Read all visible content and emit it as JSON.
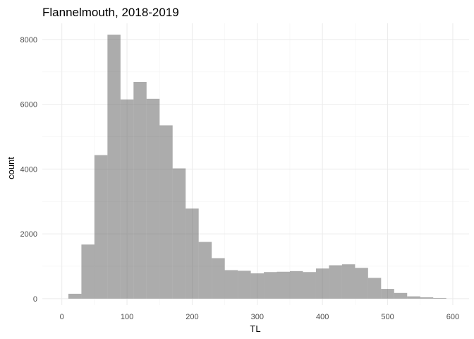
{
  "chart_data": {
    "type": "bar",
    "title": "Flannelmouth, 2018-2019",
    "xlabel": "TL",
    "ylabel": "count",
    "xlim": [
      -30,
      625
    ],
    "ylim": [
      -200,
      8500
    ],
    "x_ticks": [
      0,
      100,
      200,
      300,
      400,
      500,
      600
    ],
    "y_ticks": [
      0,
      2000,
      4000,
      6000,
      8000
    ],
    "bin_width": 20,
    "bins": [
      {
        "x0": 10,
        "x1": 30,
        "count": 150
      },
      {
        "x0": 30,
        "x1": 50,
        "count": 1670
      },
      {
        "x0": 50,
        "x1": 70,
        "count": 4430
      },
      {
        "x0": 70,
        "x1": 90,
        "count": 8150
      },
      {
        "x0": 90,
        "x1": 110,
        "count": 6150
      },
      {
        "x0": 110,
        "x1": 130,
        "count": 6690
      },
      {
        "x0": 130,
        "x1": 150,
        "count": 6170
      },
      {
        "x0": 150,
        "x1": 170,
        "count": 5350
      },
      {
        "x0": 170,
        "x1": 190,
        "count": 4020
      },
      {
        "x0": 190,
        "x1": 210,
        "count": 2780
      },
      {
        "x0": 210,
        "x1": 230,
        "count": 1750
      },
      {
        "x0": 230,
        "x1": 250,
        "count": 1250
      },
      {
        "x0": 250,
        "x1": 270,
        "count": 880
      },
      {
        "x0": 270,
        "x1": 290,
        "count": 860
      },
      {
        "x0": 290,
        "x1": 310,
        "count": 780
      },
      {
        "x0": 310,
        "x1": 330,
        "count": 820
      },
      {
        "x0": 330,
        "x1": 350,
        "count": 830
      },
      {
        "x0": 350,
        "x1": 370,
        "count": 850
      },
      {
        "x0": 370,
        "x1": 390,
        "count": 820
      },
      {
        "x0": 390,
        "x1": 410,
        "count": 930
      },
      {
        "x0": 410,
        "x1": 430,
        "count": 1030
      },
      {
        "x0": 430,
        "x1": 450,
        "count": 1060
      },
      {
        "x0": 450,
        "x1": 470,
        "count": 950
      },
      {
        "x0": 470,
        "x1": 490,
        "count": 640
      },
      {
        "x0": 490,
        "x1": 510,
        "count": 300
      },
      {
        "x0": 510,
        "x1": 530,
        "count": 175
      },
      {
        "x0": 530,
        "x1": 550,
        "count": 70
      },
      {
        "x0": 550,
        "x1": 570,
        "count": 40
      },
      {
        "x0": 570,
        "x1": 590,
        "count": 20
      }
    ],
    "grid": true,
    "bar_color": "#595959",
    "bar_opacity": 0.5
  }
}
